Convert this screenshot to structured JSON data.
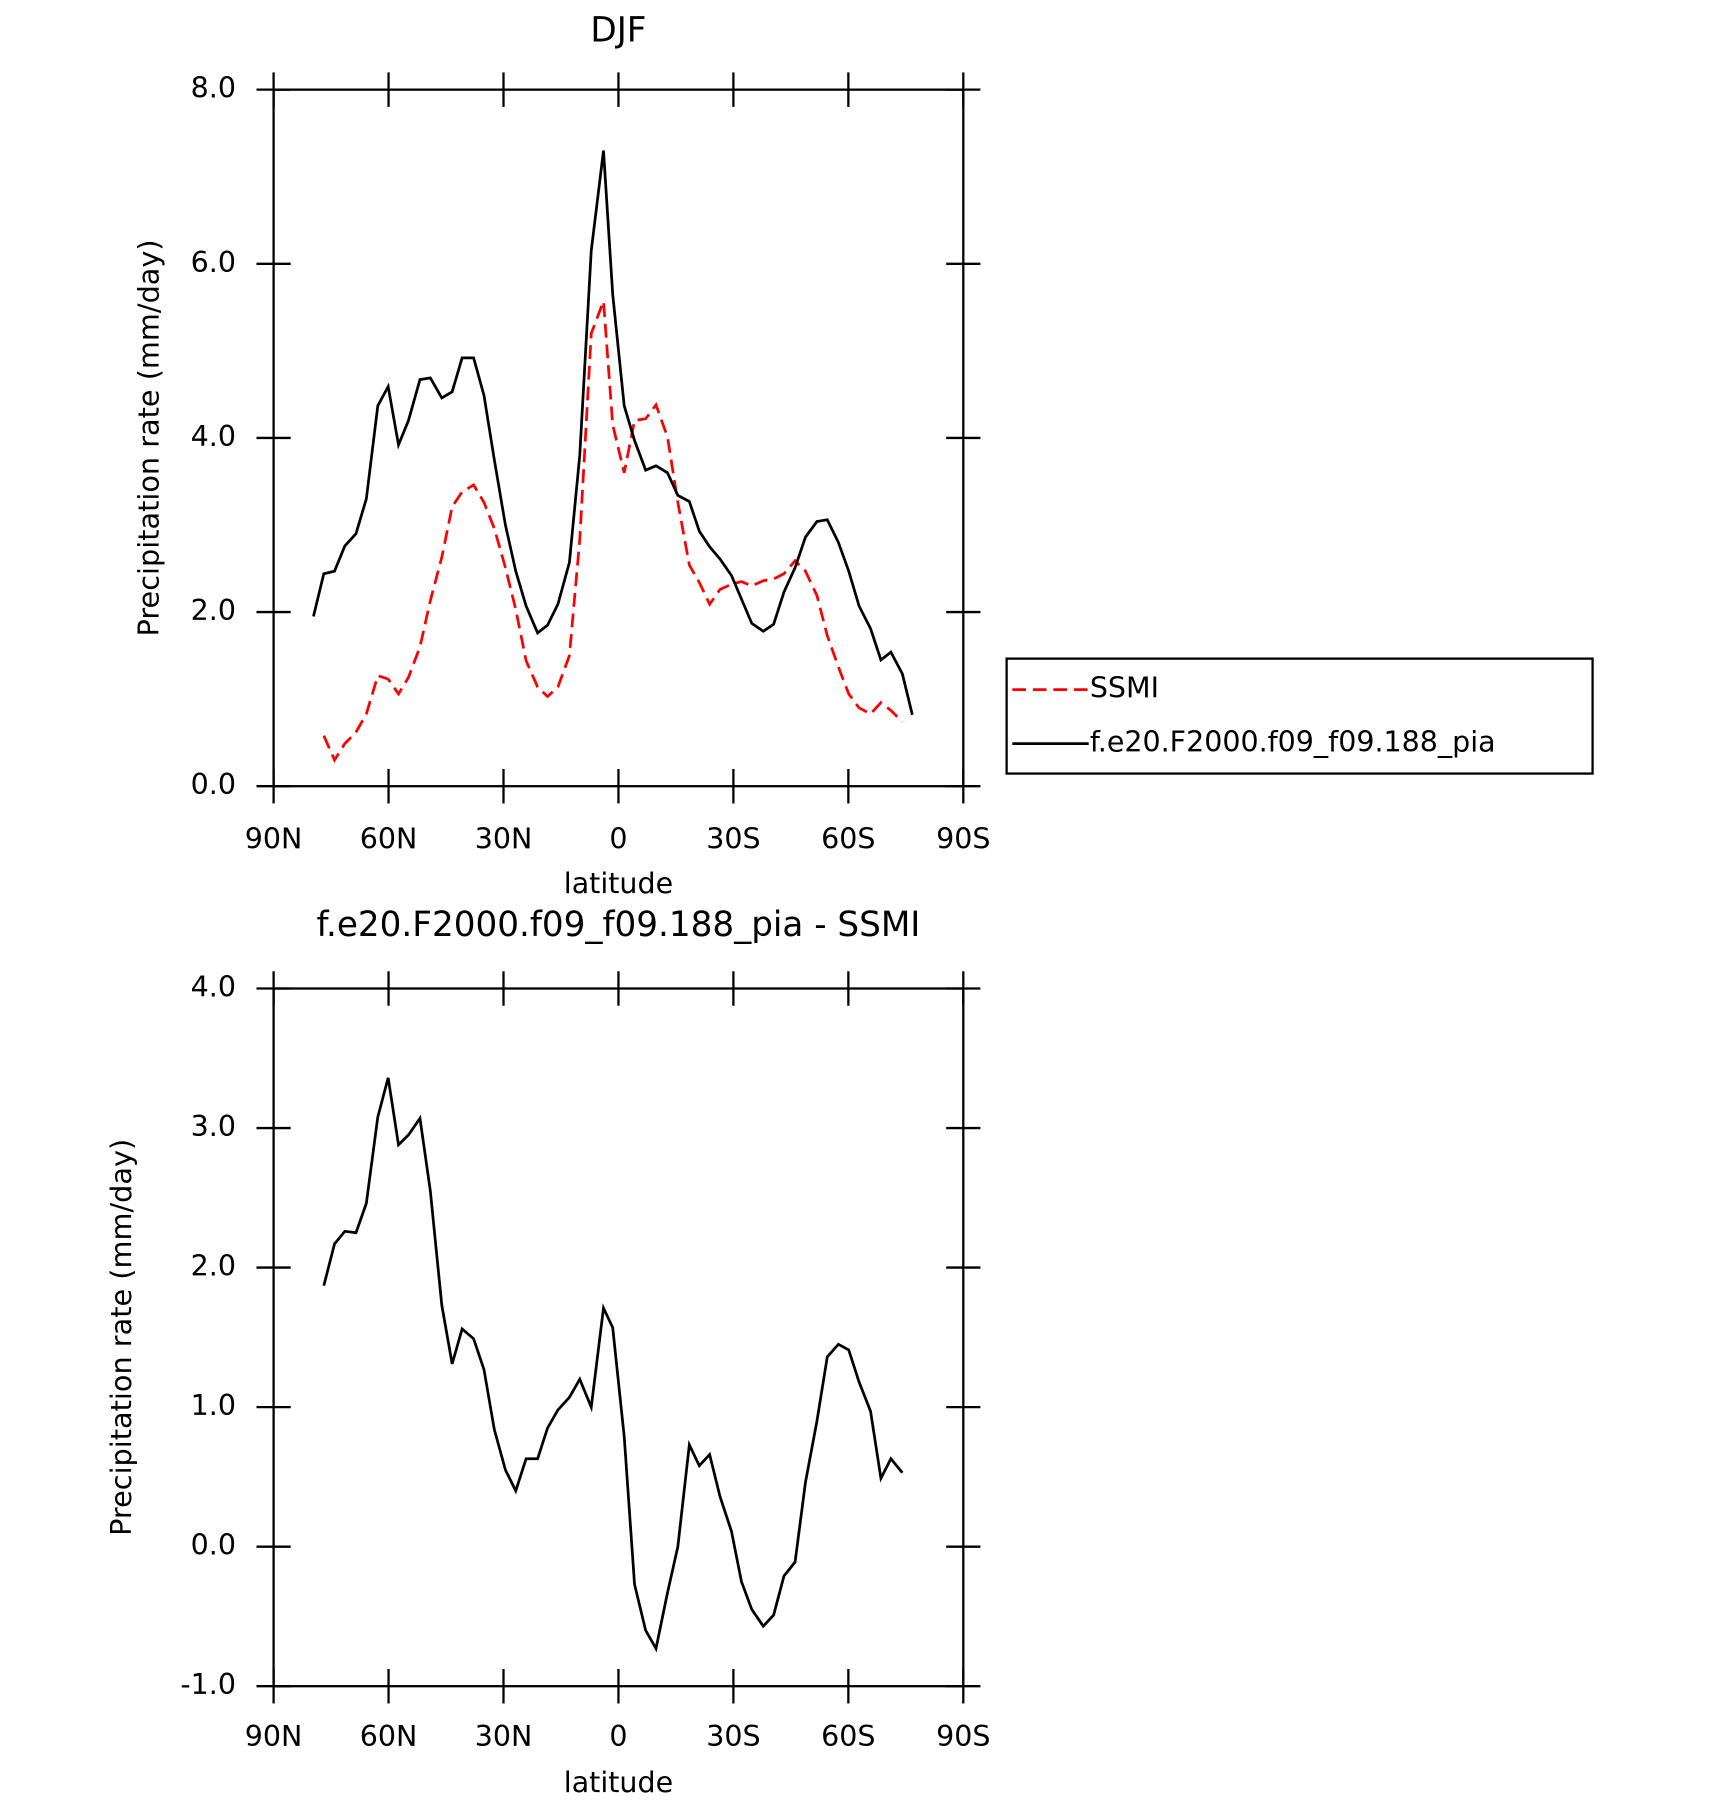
{
  "chart_data": [
    {
      "type": "line",
      "title": "DJF",
      "x_label": "latitude",
      "y_label": "Precipitation rate (mm/day)",
      "xlim": [
        90,
        -90
      ],
      "xticks": [
        {
          "value": 90,
          "label": "90N"
        },
        {
          "value": 60,
          "label": "60N"
        },
        {
          "value": 30,
          "label": "30N"
        },
        0,
        {
          "value": -30,
          "label": "30S"
        },
        {
          "value": -60,
          "label": "60S"
        },
        {
          "value": -90,
          "label": "90S"
        }
      ],
      "ylim": [
        0,
        8
      ],
      "yticks": [
        {
          "value": 0,
          "label": "0.0"
        },
        {
          "value": 2,
          "label": "2.0"
        },
        {
          "value": 4,
          "label": "4.0"
        },
        {
          "value": 6,
          "label": "6.0"
        },
        {
          "value": 8,
          "label": "8.0"
        }
      ],
      "legend": "right",
      "x": [
        79.6,
        76.9,
        74.1,
        71.4,
        68.5,
        65.8,
        62.8,
        60.1,
        57.4,
        54.8,
        51.8,
        49.1,
        46.1,
        43.4,
        40.8,
        37.8,
        35.1,
        32.4,
        29.5,
        26.8,
        24.1,
        21.1,
        18.5,
        15.8,
        12.8,
        10.1,
        7.1,
        3.9,
        1.5,
        -1.5,
        -4.2,
        -7.1,
        -9.8,
        -12.8,
        -15.5,
        -18.5,
        -21.1,
        -23.8,
        -26.5,
        -29.5,
        -32.1,
        -34.8,
        -37.8,
        -40.5,
        -43.2,
        -46.1,
        -48.8,
        -51.8,
        -54.5,
        -57.4,
        -60.1,
        -62.8,
        -65.8,
        -68.5,
        -71.1,
        -74.1,
        -76.7
      ],
      "series": [
        {
          "name": "SSMI",
          "color": "#ff0000",
          "line_style": "dashed",
          "values": [
            null,
            0.58,
            0.3,
            0.49,
            0.62,
            0.83,
            1.27,
            1.23,
            1.06,
            1.25,
            1.6,
            2.13,
            2.63,
            3.21,
            3.38,
            3.46,
            3.26,
            2.96,
            2.51,
            2.03,
            1.44,
            1.14,
            1.03,
            1.14,
            1.5,
            2.83,
            5.2,
            5.57,
            4.15,
            3.6,
            4.2,
            4.22,
            4.38,
            4.01,
            3.26,
            2.54,
            2.34,
            2.09,
            2.26,
            2.32,
            2.35,
            2.3,
            2.36,
            2.38,
            2.44,
            2.59,
            2.47,
            2.19,
            1.73,
            1.37,
            1.06,
            0.9,
            0.83,
            0.96,
            0.87,
            0.74,
            null
          ]
        },
        {
          "name": "f.e20.F2000.f09_f09.188_pia",
          "color": "#000000",
          "line_style": "solid",
          "values": [
            1.95,
            2.44,
            2.47,
            2.76,
            2.9,
            3.3,
            4.37,
            4.59,
            3.92,
            4.2,
            4.67,
            4.69,
            4.46,
            4.53,
            4.92,
            4.92,
            4.49,
            3.75,
            3.0,
            2.47,
            2.07,
            1.76,
            1.85,
            2.09,
            2.57,
            3.8,
            6.15,
            7.3,
            5.65,
            4.37,
            3.97,
            3.63,
            3.68,
            3.6,
            3.34,
            3.27,
            2.93,
            2.75,
            2.61,
            2.42,
            2.15,
            1.87,
            1.78,
            1.86,
            2.23,
            2.51,
            2.86,
            3.04,
            3.06,
            2.8,
            2.47,
            2.07,
            1.81,
            1.45,
            1.54,
            1.29,
            0.82
          ]
        }
      ]
    },
    {
      "type": "line",
      "title": "f.e20.F2000.f09_f09.188_pia - SSMI",
      "x_label": "latitude",
      "y_label": "Precipitation rate (mm/day)",
      "xlim": [
        90,
        -90
      ],
      "xticks": [
        {
          "value": 90,
          "label": "90N"
        },
        {
          "value": 60,
          "label": "60N"
        },
        {
          "value": 30,
          "label": "30N"
        },
        0,
        {
          "value": -30,
          "label": "30S"
        },
        {
          "value": -60,
          "label": "60S"
        },
        {
          "value": -90,
          "label": "90S"
        }
      ],
      "ylim": [
        -1,
        4
      ],
      "yticks": [
        {
          "value": -1,
          "label": "-1.0"
        },
        {
          "value": 0,
          "label": "0.0"
        },
        {
          "value": 1,
          "label": "1.0"
        },
        {
          "value": 2,
          "label": "2.0"
        },
        {
          "value": 3,
          "label": "3.0"
        },
        {
          "value": 4,
          "label": "4.0"
        }
      ],
      "x": [
        76.9,
        74.1,
        71.4,
        68.5,
        65.8,
        62.8,
        60.1,
        57.4,
        54.8,
        51.8,
        49.1,
        46.1,
        43.4,
        40.8,
        37.8,
        35.1,
        32.4,
        29.5,
        26.8,
        24.1,
        21.1,
        18.5,
        15.8,
        12.8,
        10.1,
        7.1,
        3.9,
        1.5,
        -1.5,
        -4.2,
        -7.1,
        -9.8,
        -12.8,
        -15.5,
        -18.5,
        -21.1,
        -23.8,
        -26.5,
        -29.5,
        -32.1,
        -34.8,
        -37.8,
        -40.5,
        -43.2,
        -46.1,
        -48.8,
        -51.8,
        -54.5,
        -57.4,
        -60.1,
        -62.8,
        -65.8,
        -68.5,
        -71.1,
        -74.1
      ],
      "color": "#000000",
      "values": [
        1.87,
        2.17,
        2.26,
        2.25,
        2.46,
        3.08,
        3.36,
        2.88,
        2.95,
        3.07,
        2.55,
        1.73,
        1.31,
        1.56,
        1.49,
        1.27,
        0.84,
        0.55,
        0.4,
        0.63,
        0.63,
        0.85,
        0.98,
        1.07,
        1.2,
        1.0,
        1.71,
        1.57,
        0.79,
        -0.27,
        -0.6,
        -0.73,
        -0.33,
        0.0,
        0.73,
        0.58,
        0.66,
        0.36,
        0.11,
        -0.25,
        -0.45,
        -0.57,
        -0.49,
        -0.21,
        -0.11,
        0.46,
        0.9,
        1.36,
        1.45,
        1.41,
        1.18,
        0.97,
        0.49,
        0.63,
        0.53
      ]
    }
  ]
}
